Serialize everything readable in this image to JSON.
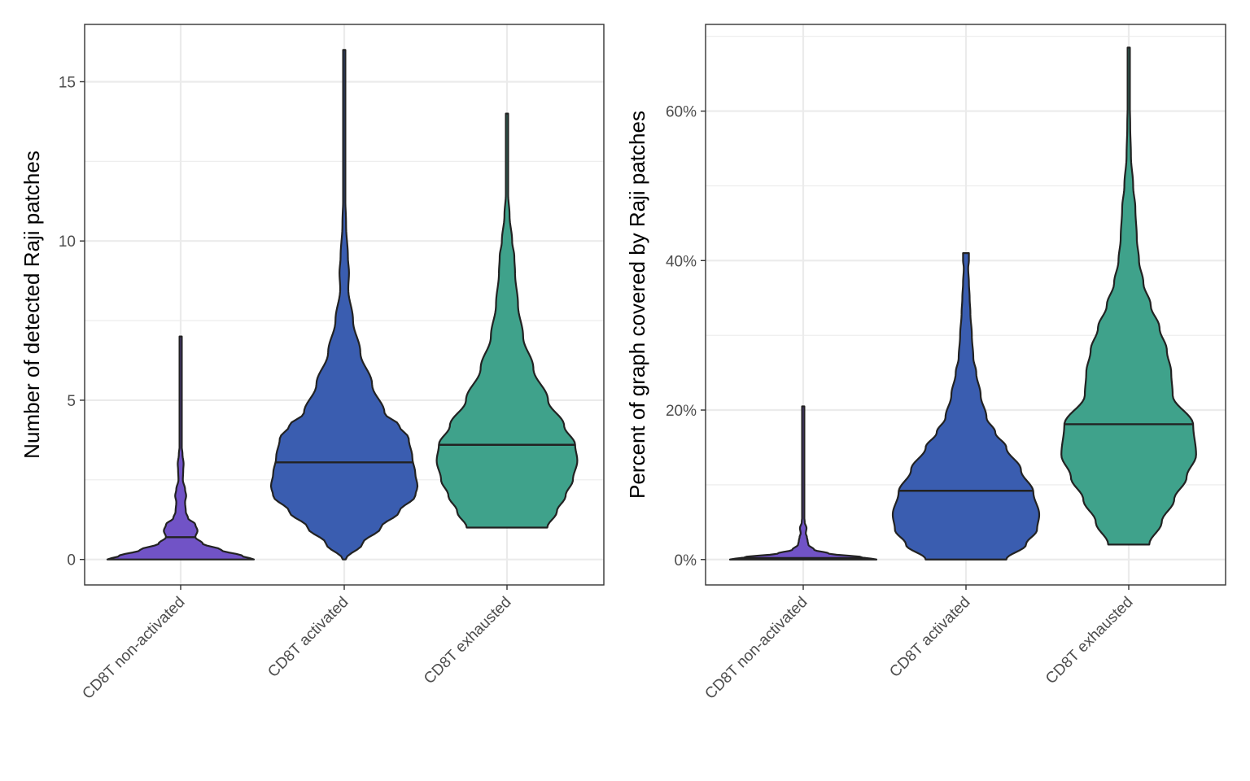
{
  "chart_data": [
    {
      "type": "violin",
      "ylabel": "Number of detected Raji patches",
      "xlabel": "",
      "categories": [
        "CD8T non-activated",
        "CD8T activated",
        "CD8T exhausted"
      ],
      "colors": [
        "#7153c6",
        "#3a5db0",
        "#3fa28b"
      ],
      "ylim": [
        -0.8,
        16.8
      ],
      "yticks": [
        0,
        5,
        10,
        15
      ],
      "ytick_labels": [
        "0",
        "5",
        "10",
        "15"
      ],
      "grid": true,
      "legend": "none",
      "series": [
        {
          "name": "CD8T non-activated",
          "min": 0,
          "max": 7,
          "median": 0.7,
          "density_profile": [
            [
              0,
              1.0
            ],
            [
              0.1,
              0.85
            ],
            [
              0.3,
              0.55
            ],
            [
              0.5,
              0.3
            ],
            [
              0.7,
              0.2
            ],
            [
              0.9,
              0.23
            ],
            [
              1.1,
              0.2
            ],
            [
              1.3,
              0.1
            ],
            [
              1.5,
              0.07
            ],
            [
              1.8,
              0.06
            ],
            [
              2.0,
              0.075
            ],
            [
              2.2,
              0.06
            ],
            [
              2.5,
              0.03
            ],
            [
              2.8,
              0.035
            ],
            [
              3.0,
              0.04
            ],
            [
              3.3,
              0.025
            ],
            [
              3.6,
              0.012
            ],
            [
              4.0,
              0.007
            ],
            [
              5.0,
              0.006
            ],
            [
              6.5,
              0.005
            ],
            [
              7.0,
              0.004
            ]
          ]
        },
        {
          "name": "CD8T activated",
          "min": 0,
          "max": 16,
          "median": 3.05,
          "density_profile": [
            [
              0,
              0.02
            ],
            [
              0.5,
              0.25
            ],
            [
              1.0,
              0.5
            ],
            [
              1.5,
              0.75
            ],
            [
              2.0,
              0.97
            ],
            [
              2.3,
              1.0
            ],
            [
              2.7,
              0.97
            ],
            [
              3.2,
              0.93
            ],
            [
              3.8,
              0.88
            ],
            [
              4.2,
              0.75
            ],
            [
              4.6,
              0.55
            ],
            [
              5.5,
              0.38
            ],
            [
              6.5,
              0.22
            ],
            [
              7.5,
              0.12
            ],
            [
              8.5,
              0.055
            ],
            [
              9.0,
              0.065
            ],
            [
              9.5,
              0.05
            ],
            [
              10.5,
              0.025
            ],
            [
              11.5,
              0.012
            ],
            [
              13.0,
              0.01
            ],
            [
              14.5,
              0.008
            ],
            [
              15.5,
              0.006
            ],
            [
              16.0,
              0.006
            ]
          ]
        },
        {
          "name": "CD8T exhausted",
          "min": 1,
          "max": 14,
          "median": 3.6,
          "density_profile": [
            [
              1.0,
              0.55
            ],
            [
              1.5,
              0.68
            ],
            [
              2.0,
              0.8
            ],
            [
              2.5,
              0.9
            ],
            [
              3.1,
              0.96
            ],
            [
              3.6,
              0.93
            ],
            [
              4.2,
              0.78
            ],
            [
              5.0,
              0.56
            ],
            [
              6.0,
              0.36
            ],
            [
              7.0,
              0.22
            ],
            [
              8.0,
              0.15
            ],
            [
              9.0,
              0.11
            ],
            [
              9.5,
              0.1
            ],
            [
              10.0,
              0.07
            ],
            [
              10.8,
              0.035
            ],
            [
              11.5,
              0.015
            ],
            [
              12.5,
              0.009
            ],
            [
              14.0,
              0.007
            ]
          ]
        }
      ]
    },
    {
      "type": "violin",
      "ylabel": "Percent of graph covered by Raji patches",
      "xlabel": "",
      "categories": [
        "CD8T non-activated",
        "CD8T activated",
        "CD8T exhausted"
      ],
      "colors": [
        "#7153c6",
        "#3a5db0",
        "#3fa28b"
      ],
      "ylim": [
        -3.4,
        71.6
      ],
      "yticks": [
        0,
        20,
        40,
        60
      ],
      "ytick_labels": [
        "0%",
        "20%",
        "40%",
        "60%"
      ],
      "grid": true,
      "legend": "none",
      "series": [
        {
          "name": "CD8T non-activated",
          "min": 0,
          "max": 20.5,
          "median": 0.2,
          "density_profile": [
            [
              0,
              1.0
            ],
            [
              0.3,
              0.8
            ],
            [
              0.8,
              0.35
            ],
            [
              1.3,
              0.15
            ],
            [
              2.0,
              0.07
            ],
            [
              2.5,
              0.06
            ],
            [
              3.0,
              0.05
            ],
            [
              3.5,
              0.035
            ],
            [
              4.2,
              0.045
            ],
            [
              5.0,
              0.02
            ],
            [
              6.0,
              0.01
            ],
            [
              7.0,
              0.012
            ],
            [
              8.0,
              0.008
            ],
            [
              10.0,
              0.008
            ],
            [
              13.0,
              0.007
            ],
            [
              15.5,
              0.01
            ],
            [
              16.5,
              0.006
            ],
            [
              20.5,
              0.005
            ]
          ]
        },
        {
          "name": "CD8T activated",
          "min": 0,
          "max": 41,
          "median": 9.2,
          "density_profile": [
            [
              0,
              0.55
            ],
            [
              2.0,
              0.82
            ],
            [
              4.0,
              0.97
            ],
            [
              6.0,
              1.0
            ],
            [
              9.0,
              0.92
            ],
            [
              12.0,
              0.75
            ],
            [
              15.0,
              0.55
            ],
            [
              17.0,
              0.4
            ],
            [
              19.0,
              0.28
            ],
            [
              22.0,
              0.2
            ],
            [
              25.0,
              0.14
            ],
            [
              27.0,
              0.1
            ],
            [
              30.0,
              0.08
            ],
            [
              33.0,
              0.06
            ],
            [
              35.0,
              0.05
            ],
            [
              37.0,
              0.04
            ],
            [
              39.0,
              0.03
            ],
            [
              40.0,
              0.04
            ],
            [
              41.0,
              0.04
            ]
          ]
        },
        {
          "name": "CD8T exhausted",
          "min": 2,
          "max": 68.5,
          "median": 18.1,
          "density_profile": [
            [
              2.0,
              0.28
            ],
            [
              5.0,
              0.45
            ],
            [
              8.0,
              0.62
            ],
            [
              11.0,
              0.79
            ],
            [
              14.0,
              0.92
            ],
            [
              18.0,
              0.88
            ],
            [
              22.0,
              0.6
            ],
            [
              25.0,
              0.58
            ],
            [
              28.0,
              0.52
            ],
            [
              31.0,
              0.42
            ],
            [
              34.0,
              0.3
            ],
            [
              37.0,
              0.2
            ],
            [
              40.0,
              0.14
            ],
            [
              43.0,
              0.11
            ],
            [
              47.0,
              0.09
            ],
            [
              50.0,
              0.06
            ],
            [
              54.0,
              0.03
            ],
            [
              58.0,
              0.02
            ],
            [
              62.0,
              0.012
            ],
            [
              66.0,
              0.01
            ],
            [
              68.5,
              0.008
            ]
          ]
        }
      ]
    }
  ]
}
